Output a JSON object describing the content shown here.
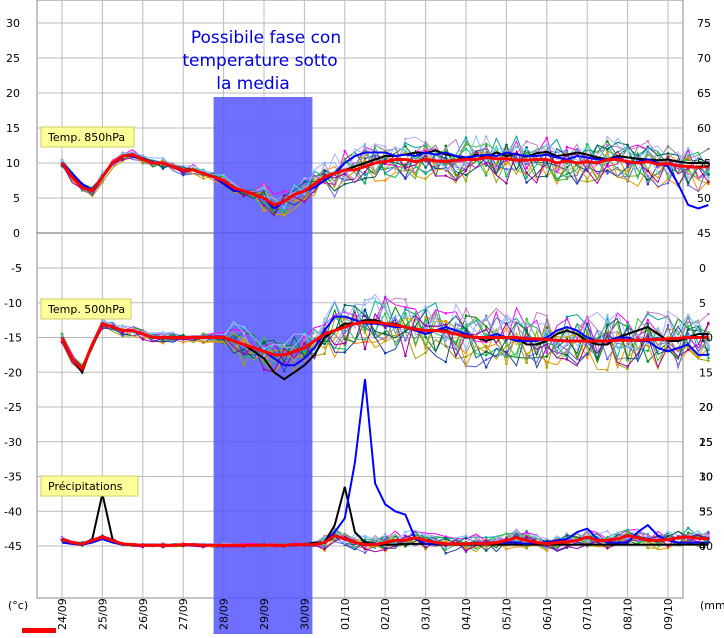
{
  "chart_data": [
    {
      "type": "line",
      "panel": "Temp. 850hPa",
      "tag": "Temp. 850hPa",
      "ylim_left": [
        0,
        30
      ],
      "yticks_left": [
        0,
        5,
        10,
        15,
        20,
        25,
        30
      ],
      "ylim_right": [
        45,
        75
      ],
      "yticks_right": [
        45,
        50,
        55,
        60,
        65,
        70,
        75
      ],
      "mean_color": "#ff0000",
      "control_color": "#000000",
      "x": [
        0,
        0.25,
        0.5,
        0.75,
        1,
        1.25,
        1.5,
        1.75,
        2,
        2.25,
        2.5,
        2.75,
        3,
        3.25,
        3.5,
        3.75,
        4,
        4.25,
        4.5,
        4.75,
        5,
        5.25,
        5.5,
        5.75,
        6,
        6.25,
        6.5,
        6.75,
        7,
        7.25,
        7.5,
        7.75,
        8,
        8.25,
        8.5,
        8.75,
        9,
        9.25,
        9.5,
        9.75,
        10,
        10.25,
        10.5,
        10.75,
        11,
        11.25,
        11.5,
        11.75,
        12,
        12.25,
        12.5,
        12.75,
        13,
        13.25,
        13.5,
        13.75,
        14,
        14.25,
        14.5,
        14.75,
        15,
        15.25,
        15.5,
        15.75,
        16
      ],
      "mean": [
        10,
        8,
        6.5,
        6,
        8,
        10,
        11,
        11.2,
        10.5,
        10,
        10,
        9.5,
        9,
        9,
        8.5,
        8,
        7.5,
        6.5,
        6,
        5.5,
        5,
        4,
        4.5,
        5.5,
        6,
        7,
        8,
        8.5,
        9,
        9,
        9.5,
        10,
        10.2,
        10.5,
        10.5,
        10.2,
        10.5,
        10.3,
        10.2,
        10.4,
        10.5,
        10.5,
        10.8,
        10.6,
        10.6,
        10.4,
        10.4,
        10.5,
        10.5,
        10,
        10.3,
        10,
        10.2,
        10,
        10.5,
        10.5,
        10.2,
        10,
        10.2,
        9.8,
        9.9,
        9.6,
        9.5,
        9.4,
        9.5
      ],
      "control": [
        10,
        8,
        7,
        6,
        8,
        10,
        11,
        11.2,
        10.5,
        10,
        10,
        9.5,
        9,
        9,
        8.5,
        8,
        7.5,
        6.5,
        6,
        5.5,
        5,
        4,
        4.5,
        5.5,
        6,
        7,
        8,
        8.5,
        9,
        9.5,
        10,
        10.5,
        11,
        11,
        11.2,
        11.5,
        11.4,
        11.8,
        11.2,
        11,
        10.5,
        11.2,
        10.8,
        11.5,
        11,
        11.3,
        10.9,
        11.4,
        11.6,
        11,
        11.2,
        11.5,
        11.2,
        10.8,
        10.5,
        11,
        10.8,
        10.6,
        10.5,
        10.4,
        10.5,
        10.2,
        10,
        10,
        10
      ],
      "blue_bold": [
        10,
        8.5,
        7,
        6,
        8,
        10,
        11,
        11,
        10.5,
        10,
        10,
        9.5,
        9,
        9,
        8.5,
        8,
        7,
        6,
        6,
        5.5,
        5,
        3.5,
        4.5,
        5.5,
        6,
        6.5,
        7.5,
        8.5,
        10,
        11,
        11.5,
        11.5,
        11.5,
        11,
        11.2,
        11,
        11.5,
        11.2,
        11.5,
        11,
        10.8,
        11,
        11.2,
        11,
        11.5,
        11.2,
        11,
        11,
        11.2,
        10.8,
        10.5,
        11,
        10.8,
        10.5,
        10.5,
        10.8,
        10,
        10.2,
        10.5,
        10,
        9.5,
        7,
        4,
        3.5,
        4
      ]
    },
    {
      "type": "line",
      "panel": "Temp. 500hPa",
      "tag": "Temp. 500hPa",
      "ylim_left": [
        -45,
        -5
      ],
      "yticks_left": [
        -5,
        -10,
        -15,
        -20,
        -25,
        -30,
        -35,
        -40,
        -45
      ],
      "ylim_right": [
        0,
        40
      ],
      "yticks_right": [
        0,
        5,
        10,
        15,
        20,
        25,
        30,
        35,
        40
      ],
      "mean_color": "#ff0000",
      "control_color": "#000000",
      "x": [
        0,
        0.25,
        0.5,
        0.75,
        1,
        1.25,
        1.5,
        1.75,
        2,
        2.25,
        2.5,
        2.75,
        3,
        3.25,
        3.5,
        3.75,
        4,
        4.25,
        4.5,
        4.75,
        5,
        5.25,
        5.5,
        5.75,
        6,
        6.25,
        6.5,
        6.75,
        7,
        7.25,
        7.5,
        7.75,
        8,
        8.25,
        8.5,
        8.75,
        9,
        9.25,
        9.5,
        9.75,
        10,
        10.25,
        10.5,
        10.75,
        11,
        11.25,
        11.5,
        11.75,
        12,
        12.25,
        12.5,
        12.75,
        13,
        13.25,
        13.5,
        13.75,
        14,
        14.25,
        14.5,
        14.75,
        15,
        15.25,
        15.5,
        15.75,
        16
      ],
      "mean": [
        -15,
        -18,
        -19.5,
        -16,
        -13,
        -13.5,
        -14,
        -14,
        -14.5,
        -15,
        -15,
        -15,
        -15,
        -15,
        -15,
        -15,
        -15,
        -15.5,
        -16,
        -16.5,
        -17,
        -17.5,
        -17.5,
        -17,
        -16.5,
        -15.5,
        -14.5,
        -14,
        -13.5,
        -13,
        -12.8,
        -12.8,
        -13,
        -13.2,
        -13.5,
        -13.8,
        -14,
        -14,
        -14.2,
        -14.5,
        -14.8,
        -15,
        -15,
        -15,
        -15,
        -15,
        -15.2,
        -15.2,
        -15.3,
        -15.4,
        -15.5,
        -15.5,
        -15.5,
        -15.5,
        -15.5,
        -15.4,
        -15.4,
        -15.4,
        -15.3,
        -15.3,
        -15.2,
        -15.1,
        -15,
        -15,
        -15
      ],
      "control": [
        -15,
        -18,
        -20,
        -16,
        -13,
        -13.5,
        -14,
        -14,
        -14.5,
        -15,
        -15,
        -15,
        -15,
        -15,
        -15,
        -15,
        -15,
        -15.5,
        -16,
        -17,
        -18,
        -20,
        -21,
        -20,
        -19,
        -17.5,
        -15,
        -14,
        -13,
        -13,
        -12.5,
        -12.5,
        -13,
        -13,
        -13.5,
        -14,
        -14.5,
        -14,
        -14,
        -14.5,
        -15,
        -15,
        -15.5,
        -15,
        -15,
        -15,
        -16,
        -16,
        -15.5,
        -14.5,
        -14,
        -14.5,
        -15.5,
        -16,
        -16,
        -15,
        -14.5,
        -14,
        -13.5,
        -14.5,
        -15.5,
        -15.5,
        -15,
        -14.5,
        -14.5
      ],
      "blue_bold": [
        -15,
        -18,
        -19.5,
        -16,
        -13,
        -13.5,
        -14,
        -14,
        -14.5,
        -15,
        -15,
        -15,
        -15,
        -15,
        -15,
        -15,
        -15,
        -15.5,
        -16,
        -16.5,
        -17,
        -18,
        -19,
        -19,
        -18,
        -16.5,
        -14,
        -12,
        -12,
        -12.5,
        -13,
        -13,
        -13.2,
        -13.5,
        -13.5,
        -14,
        -14.5,
        -14,
        -13.5,
        -14,
        -14.5,
        -15,
        -15,
        -14.5,
        -15,
        -15.5,
        -15.5,
        -15.5,
        -15,
        -14,
        -13.5,
        -14,
        -15,
        -15.5,
        -15.5,
        -15,
        -15,
        -15.5,
        -15.5,
        -16.5,
        -17,
        -16.5,
        -16,
        -17.5,
        -17.5
      ]
    },
    {
      "type": "line",
      "panel": "Précipitations",
      "tag": "Précipitations",
      "unit": "(mm)",
      "ylim_right": [
        0,
        20
      ],
      "yticks_right": [
        0,
        5,
        10,
        15,
        20
      ],
      "mean_color": "#ff0000",
      "x": [
        0,
        0.25,
        0.5,
        0.75,
        1,
        1.25,
        1.5,
        1.75,
        2,
        2.25,
        2.5,
        2.75,
        3,
        3.25,
        3.5,
        3.75,
        4,
        4.25,
        4.5,
        4.75,
        5,
        5.25,
        5.5,
        5.75,
        6,
        6.25,
        6.5,
        6.75,
        7,
        7.25,
        7.5,
        7.75,
        8,
        8.25,
        8.5,
        8.75,
        9,
        9.25,
        9.5,
        9.75,
        10,
        10.25,
        10.5,
        10.75,
        11,
        11.25,
        11.5,
        11.75,
        12,
        12.25,
        12.5,
        12.75,
        13,
        13.25,
        13.5,
        13.75,
        14,
        14.25,
        14.5,
        14.75,
        15,
        15.25,
        15.5,
        15.75,
        16
      ],
      "mean": [
        1,
        0.5,
        0.3,
        0.8,
        1.3,
        0.8,
        0.3,
        0.2,
        0.1,
        0.1,
        0.1,
        0.1,
        0.2,
        0.2,
        0.1,
        0.1,
        0.1,
        0.1,
        0.1,
        0.1,
        0.1,
        0.1,
        0.1,
        0.2,
        0.2,
        0.2,
        0.5,
        1.5,
        1,
        0.5,
        0.2,
        0.2,
        0.5,
        0.8,
        0.8,
        1.2,
        0.8,
        0.5,
        0.3,
        0.3,
        0.3,
        0.4,
        0.3,
        0.5,
        0.8,
        1.2,
        0.8,
        0.5,
        0.3,
        0.5,
        0.6,
        0.8,
        1.3,
        0.8,
        0.8,
        1,
        1.5,
        1.2,
        0.8,
        0.8,
        0.9,
        1.2,
        1.3,
        1.1,
        1
      ],
      "control": [
        1,
        0.5,
        0.2,
        1,
        7.5,
        1,
        0.2,
        0.1,
        0.1,
        0.1,
        0.1,
        0.1,
        0.1,
        0.1,
        0.1,
        0.1,
        0.1,
        0.1,
        0.1,
        0.1,
        0.1,
        0.1,
        0.1,
        0.1,
        0.2,
        0.5,
        0.5,
        3,
        8.5,
        2,
        0.5,
        0.2,
        0.2,
        0.2,
        0.3,
        0.3,
        0.3,
        0.2,
        0.2,
        0.2,
        0.2,
        0.2,
        0.2,
        0.2,
        0.2,
        0.2,
        0.2,
        0.2,
        0.2,
        0.2,
        0.2,
        0.2,
        0.2,
        0.2,
        0.2,
        0.2,
        0.2,
        0.2,
        0.2,
        0.2,
        0.2,
        0.2,
        0.2,
        0.2,
        0.2
      ],
      "blue_bold": [
        0.5,
        0.3,
        0.2,
        0.5,
        1,
        0.5,
        0.2,
        0.1,
        0.1,
        0.1,
        0.1,
        0.1,
        0.1,
        0.1,
        0.1,
        0.1,
        0.1,
        0.1,
        0.1,
        0.1,
        0.1,
        0.1,
        0.1,
        0.1,
        0.2,
        0.3,
        0.5,
        2,
        4,
        12,
        24,
        9,
        6,
        5,
        4.5,
        1,
        0.3,
        0.3,
        0.3,
        0.3,
        0.3,
        0.5,
        0.3,
        0.5,
        0.5,
        0.5,
        0.3,
        0.5,
        0.5,
        0.8,
        1,
        2,
        2.5,
        1,
        0.5,
        0.5,
        0.5,
        2,
        3,
        1.5,
        0.8,
        0.5,
        0.5,
        0.5,
        0.5
      ]
    }
  ],
  "x_dates": [
    "24/09",
    "25/09",
    "26/09",
    "27/09",
    "28/09",
    "29/09",
    "30/09",
    "01/10",
    "02/10",
    "03/10",
    "04/10",
    "05/10",
    "06/10",
    "07/10",
    "08/10",
    "09/10"
  ],
  "unit_left": "(°c)",
  "unit_right": "(mm)",
  "annotation": {
    "lines": [
      "Possibile fase con",
      "temperature sotto",
      "la media"
    ],
    "color": "#0000dd",
    "highlight_color": "#5555ff",
    "highlight_from_date": "28/09",
    "highlight_to_date": "30/09"
  },
  "member_colors": [
    "#ff8c00",
    "#008000",
    "#00a0a0",
    "#a0a000",
    "#808080",
    "#ff00ff",
    "#6060ff",
    "#00c060",
    "#b0b0ff",
    "#2040a0",
    "#40c040",
    "#c080c0",
    "#d0a000",
    "#006060",
    "#80c0ff",
    "#a000a0"
  ]
}
